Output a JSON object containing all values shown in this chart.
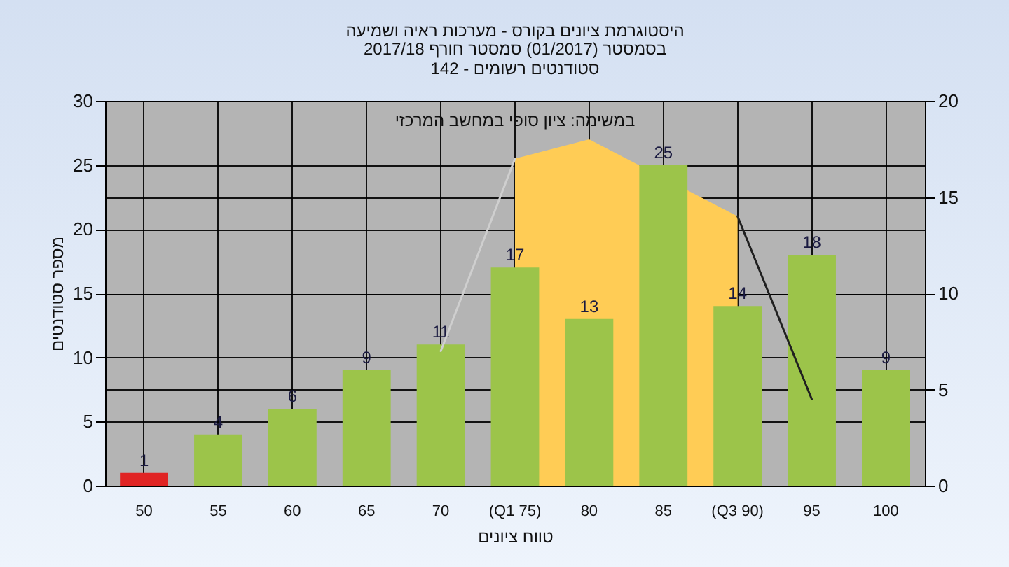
{
  "chart_data": {
    "type": "bar",
    "title": "היסטוגרמת ציונים בקורס - מערכות ראיה ושמיעה",
    "subtitle": "בסמסטר  (01/2017)  סמסטר חורף 2017/18\nסטודנטים רשומים - 142",
    "xlabel": "טווח ציונים",
    "ylabel": "מספר סטודנטים",
    "annotations": [
      "במשימה: ציון סופי במחשב המרכזי"
    ],
    "categories": [
      "50",
      "55",
      "60",
      "65",
      "70",
      "(Q1 75)",
      "80",
      "85",
      "(Q3 90)",
      "95",
      "100"
    ],
    "series": [
      {
        "type": "area",
        "axis": "y2",
        "color": "#ffcc55",
        "values": [
          null,
          null,
          null,
          null,
          null,
          17,
          18,
          null,
          14,
          null,
          null
        ]
      },
      {
        "type": "line",
        "axis": "y2",
        "color": "#cfcfcf",
        "values": [
          null,
          null,
          null,
          null,
          7,
          17,
          null,
          null,
          null,
          null,
          null
        ]
      },
      {
        "type": "line",
        "axis": "y2",
        "color": "#202020",
        "values": [
          null,
          null,
          null,
          null,
          null,
          null,
          null,
          null,
          14,
          4.5,
          null
        ]
      },
      {
        "colors": [
          "#e02424",
          "#9cc44a",
          "#9cc44a",
          "#9cc44a",
          "#9cc44a",
          "#9cc44a",
          "#9cc44a",
          "#9cc44a",
          "#9cc44a",
          "#9cc44a",
          "#9cc44a"
        ],
        "values": [
          1,
          4,
          6,
          9,
          11,
          17,
          13,
          25,
          14,
          18,
          9
        ],
        "value_labels": [
          "1",
          "4",
          "6",
          "9",
          "11",
          "17",
          "13",
          "25",
          "14",
          "18",
          "9"
        ]
      }
    ],
    "ylim": [
      0,
      30
    ],
    "yticks": [
      0,
      5,
      10,
      15,
      20,
      25,
      30
    ],
    "y2lim": [
      0,
      20
    ],
    "y2ticks": [
      0,
      5,
      10,
      15,
      20
    ],
    "grid": true
  }
}
